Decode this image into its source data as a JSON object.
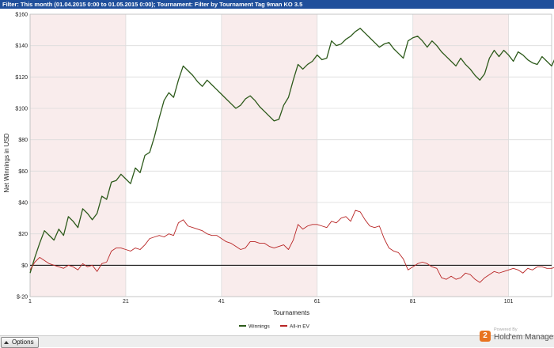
{
  "filter": {
    "text": "Filter: This month (01.04.2015 0:00 to 01.05.2015 0:00);  Tournament: Filter by Tournament Tag  9man KO 3.5"
  },
  "buttons": {
    "options_label": "Options"
  },
  "branding": {
    "powered_by": "Powered By",
    "name": "Hold'em Manager",
    "logo_glyph": "2"
  },
  "colors": {
    "filter_bar": "#1f4f9b",
    "winnings": "#2d5a1b",
    "allin_ev": "#b82525",
    "band": "#f9ecec",
    "brand_orange": "#e8731f"
  },
  "chart_data": {
    "type": "line",
    "xlabel": "Tournaments",
    "ylabel": "Net Winnings in USD",
    "xlim": [
      1,
      110
    ],
    "ylim": [
      -20,
      160
    ],
    "x_ticks": [
      1,
      21,
      41,
      61,
      81,
      101
    ],
    "y_ticks": [
      -20,
      0,
      20,
      40,
      60,
      80,
      100,
      120,
      140,
      160
    ],
    "y_tick_labels": [
      "$-20",
      "$0",
      "$20",
      "$40",
      "$60",
      "$80",
      "$100",
      "$120",
      "$140",
      "$160"
    ],
    "grid": true,
    "legend_position": "bottom-center",
    "series": [
      {
        "name": "Winnings",
        "color": "#2d5a1b",
        "values": [
          -5,
          5,
          14,
          22,
          19,
          16,
          23,
          19,
          31,
          28,
          24,
          36,
          33,
          29,
          33,
          44,
          42,
          53,
          54,
          58,
          55,
          52,
          62,
          59,
          70,
          72,
          82,
          94,
          105,
          110,
          107,
          118,
          127,
          124,
          121,
          117,
          114,
          118,
          115,
          112,
          109,
          106,
          103,
          100,
          102,
          106,
          108,
          105,
          101,
          98,
          95,
          92,
          93,
          102,
          107,
          118,
          128,
          125,
          128,
          130,
          134,
          131,
          132,
          143,
          140,
          141,
          144,
          146,
          149,
          151,
          148,
          145,
          142,
          139,
          141,
          142,
          138,
          135,
          132,
          143,
          145,
          146,
          143,
          139,
          143,
          140,
          136,
          133,
          130,
          127,
          132,
          128,
          125,
          121,
          118,
          122,
          132,
          137,
          133,
          137,
          134,
          130,
          136,
          134,
          131,
          129,
          128,
          133,
          130,
          127,
          134
        ]
      },
      {
        "name": "All-in EV",
        "color": "#b82525",
        "values": [
          -3,
          2,
          5,
          3,
          1,
          0,
          -1,
          -2,
          0,
          -1,
          -3,
          1,
          -1,
          0,
          -4,
          1,
          2,
          9,
          11,
          11,
          10,
          9,
          11,
          10,
          13,
          17,
          18,
          19,
          18,
          20,
          19,
          27,
          29,
          25,
          24,
          23,
          22,
          20,
          19,
          19,
          17,
          15,
          14,
          12,
          10,
          11,
          15,
          15,
          14,
          14,
          12,
          11,
          12,
          13,
          10,
          16,
          26,
          23,
          25,
          26,
          26,
          25,
          24,
          28,
          27,
          30,
          31,
          28,
          35,
          34,
          29,
          25,
          24,
          25,
          17,
          11,
          9,
          8,
          4,
          -3,
          -1,
          1,
          2,
          1,
          -1,
          -2,
          -8,
          -9,
          -7,
          -9,
          -8,
          -5,
          -6,
          -9,
          -11,
          -8,
          -6,
          -4,
          -5,
          -4,
          -3,
          -2,
          -3,
          -5,
          -2,
          -3,
          -1,
          -1,
          -2,
          -2,
          -1
        ]
      }
    ]
  }
}
